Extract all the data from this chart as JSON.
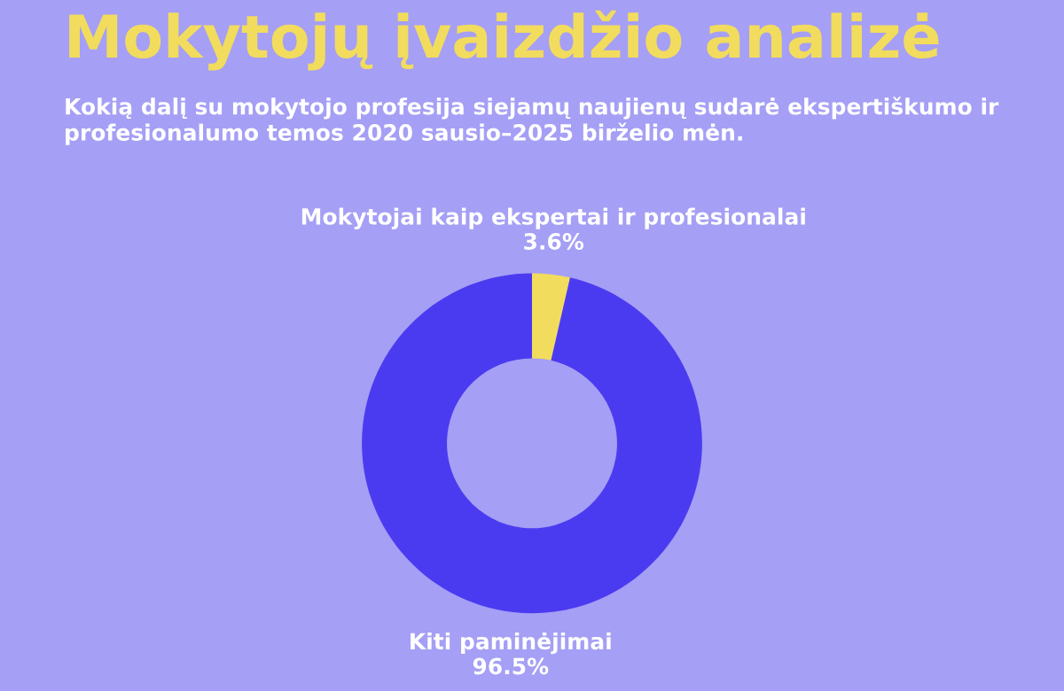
{
  "chart_data": {
    "type": "donut",
    "title": "Mokytojų įvaizdžio analizė",
    "subtitle": "Kokią dalį su mokytojo profesija siejamų naujienų sudarė ekspertiškumo ir profesionalumo temos 2020 sausio–2025 birželio mėn.",
    "categories": [
      "Mokytojai kaip ekspertai ir profesionalai",
      "Kiti paminėjimai"
    ],
    "values": [
      3.6,
      96.5
    ],
    "colors": [
      "#f2dc5d",
      "#4b3bf0"
    ],
    "value_labels": [
      "3.6%",
      "96.5%"
    ],
    "legend": false
  }
}
